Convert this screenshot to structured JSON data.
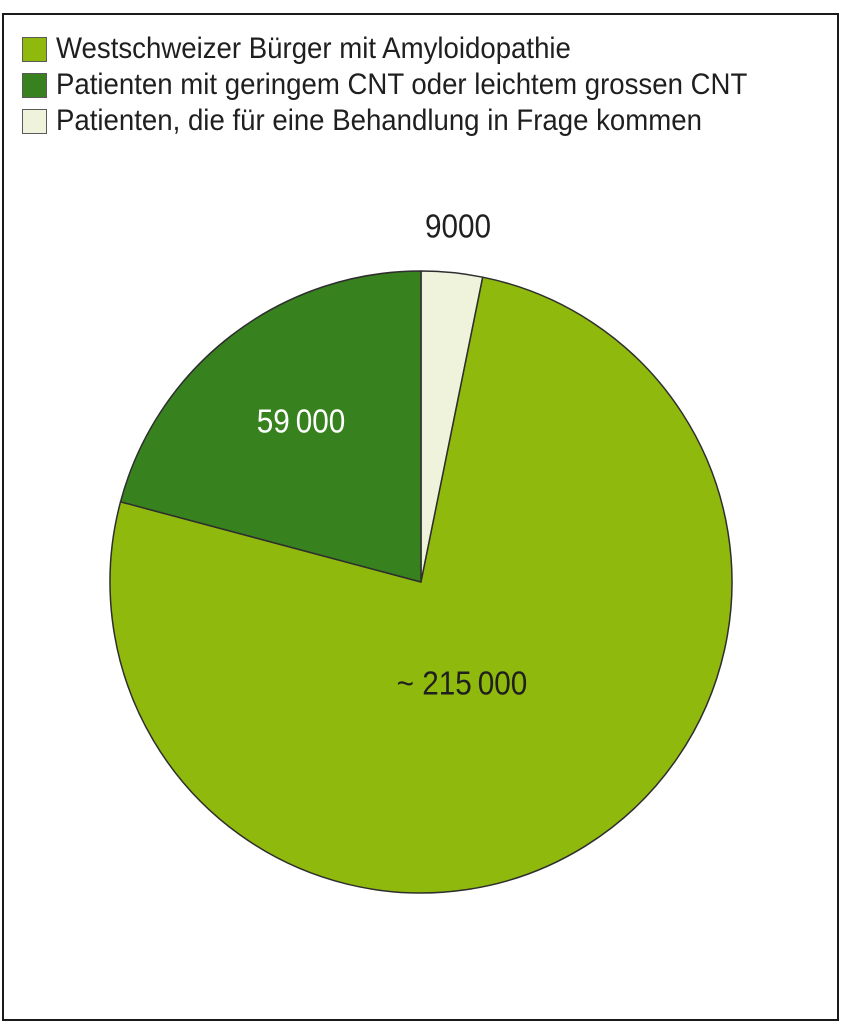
{
  "chart_data": {
    "type": "pie",
    "title": "",
    "legend_position": "top-left",
    "total": 283000,
    "slices": [
      {
        "label": "Westschweizer Bürger mit Amyloidopathie",
        "value": 215000,
        "display_value": "~ 215 000",
        "color": "#8FB90D",
        "label_color": "#1f1f1f"
      },
      {
        "label": "Patienten mit geringem CNT oder leichtem grossen CNT",
        "value": 59000,
        "display_value": "59 000",
        "color": "#37821F",
        "label_color": "#FFFFFF"
      },
      {
        "label": "Patienten, die für eine Behandlung in Frage kommen",
        "value": 9000,
        "display_value": "9000",
        "color": "#F0F3DC",
        "label_color": "#1f1f1f"
      }
    ],
    "draw_order_clockwise_from_top": [
      2,
      0,
      1
    ],
    "start_angle_deg": 0
  },
  "colors": {
    "frame_border": "#1a1a1a",
    "slice_stroke": "#2e2e2e",
    "background": "#ffffff",
    "swatch_border": "#5a5a5a"
  }
}
